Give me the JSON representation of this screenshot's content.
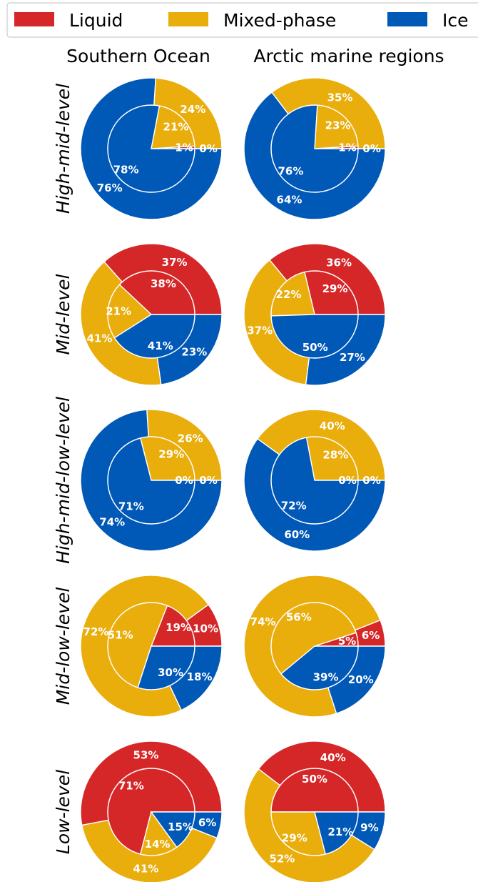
{
  "chart_data": {
    "type": "pie",
    "legend": {
      "placement": "top",
      "entries": [
        {
          "key": "liquid",
          "label": "Liquid",
          "color": "#d62728"
        },
        {
          "key": "mixed",
          "label": "Mixed-phase",
          "color": "#e9ad0c"
        },
        {
          "key": "ice",
          "label": "Ice",
          "color": "#0058b7"
        }
      ]
    },
    "columns": [
      "Southern Ocean",
      "Arctic marine regions"
    ],
    "rows": [
      "High-mid-level",
      "Mid-level",
      "High-mid-low-level",
      "Mid-low-level",
      "Low-level"
    ],
    "rings": [
      "outer",
      "inner"
    ],
    "pies": [
      {
        "row": "High-mid-level",
        "column": "Southern Ocean",
        "outer": {
          "liquid": 0,
          "mixed": 24,
          "ice": 76
        },
        "inner": {
          "liquid": 1,
          "mixed": 21,
          "ice": 78
        },
        "labels": {
          "outer": [
            "0%",
            "24%",
            "76%"
          ],
          "inner": [
            "1%",
            "21%",
            "78%"
          ]
        }
      },
      {
        "row": "High-mid-level",
        "column": "Arctic marine regions",
        "outer": {
          "liquid": 0,
          "mixed": 35,
          "ice": 64
        },
        "inner": {
          "liquid": 1,
          "mixed": 23,
          "ice": 76
        },
        "labels": {
          "outer": [
            "0%",
            "35%",
            "64%"
          ],
          "inner": [
            "1%",
            "23%",
            "76%"
          ]
        }
      },
      {
        "row": "Mid-level",
        "column": "Southern Ocean",
        "outer": {
          "liquid": 37,
          "mixed": 41,
          "ice": 23
        },
        "inner": {
          "liquid": 38,
          "mixed": 21,
          "ice": 41
        },
        "labels": {
          "outer": [
            "37%",
            "41%",
            "23%"
          ],
          "inner": [
            "38%",
            "21%",
            "41%"
          ]
        }
      },
      {
        "row": "Mid-level",
        "column": "Arctic marine regions",
        "outer": {
          "liquid": 36,
          "mixed": 37,
          "ice": 27
        },
        "inner": {
          "liquid": 29,
          "mixed": 22,
          "ice": 50
        },
        "labels": {
          "outer": [
            "36%",
            "37%",
            "27%"
          ],
          "inner": [
            "29%",
            "22%",
            "50%"
          ]
        }
      },
      {
        "row": "High-mid-low-level",
        "column": "Southern Ocean",
        "outer": {
          "liquid": 0,
          "mixed": 26,
          "ice": 74
        },
        "inner": {
          "liquid": 0,
          "mixed": 29,
          "ice": 71
        },
        "labels": {
          "outer": [
            "0%",
            "26%",
            "74%"
          ],
          "inner": [
            "0%",
            "29%",
            "71%"
          ]
        }
      },
      {
        "row": "High-mid-low-level",
        "column": "Arctic marine regions",
        "outer": {
          "liquid": 0,
          "mixed": 40,
          "ice": 60
        },
        "inner": {
          "liquid": 0,
          "mixed": 28,
          "ice": 72
        },
        "labels": {
          "outer": [
            "0%",
            "40%",
            "60%"
          ],
          "inner": [
            "0%",
            "28%",
            "72%"
          ]
        }
      },
      {
        "row": "Mid-low-level",
        "column": "Southern Ocean",
        "outer": {
          "liquid": 10,
          "mixed": 72,
          "ice": 18
        },
        "inner": {
          "liquid": 19,
          "mixed": 51,
          "ice": 30
        },
        "labels": {
          "outer": [
            "10%",
            "72%",
            "18%"
          ],
          "inner": [
            "19%",
            "51%",
            "30%"
          ]
        }
      },
      {
        "row": "Mid-low-level",
        "column": "Arctic marine regions",
        "outer": {
          "liquid": 6,
          "mixed": 74,
          "ice": 20
        },
        "inner": {
          "liquid": 5,
          "mixed": 56,
          "ice": 39
        },
        "labels": {
          "outer": [
            "6%",
            "74%",
            "20%"
          ],
          "inner": [
            "5%",
            "56%",
            "39%"
          ]
        }
      },
      {
        "row": "Low-level",
        "column": "Southern Ocean",
        "outer": {
          "liquid": 53,
          "mixed": 41,
          "ice": 6
        },
        "inner": {
          "liquid": 71,
          "mixed": 14,
          "ice": 15
        },
        "labels": {
          "outer": [
            "53%",
            "41%",
            "6%"
          ],
          "inner": [
            "71%",
            "14%",
            "15%"
          ]
        }
      },
      {
        "row": "Low-level",
        "column": "Arctic marine regions",
        "outer": {
          "liquid": 40,
          "mixed": 52,
          "ice": 9
        },
        "inner": {
          "liquid": 50,
          "mixed": 29,
          "ice": 21
        },
        "labels": {
          "outer": [
            "40%",
            "52%",
            "9%"
          ],
          "inner": [
            "50%",
            "29%",
            "21%"
          ]
        }
      }
    ]
  }
}
